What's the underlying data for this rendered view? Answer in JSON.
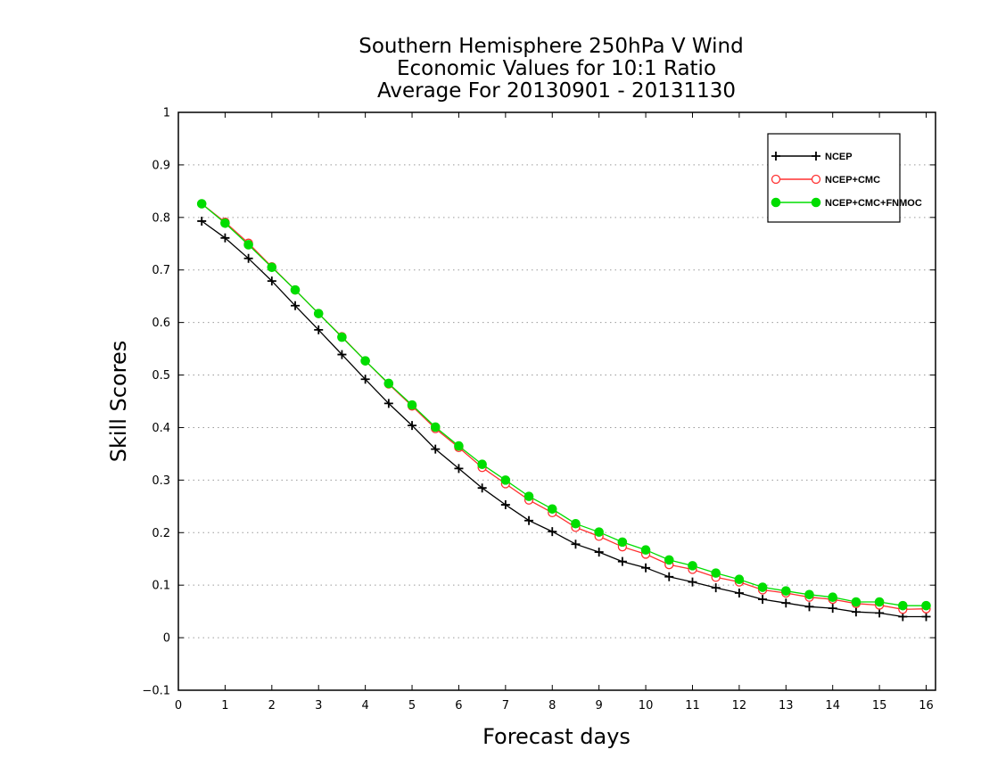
{
  "chart_data": {
    "type": "line",
    "title_lines": [
      "Southern Hemisphere 250hPa V Wind",
      "Economic Values for 10:1 Ratio",
      "Average For 20130901 - 20131130"
    ],
    "xlabel": "Forecast days",
    "ylabel": "Skill Scores",
    "xlim": [
      0,
      16.2
    ],
    "ylim": [
      -0.1,
      1
    ],
    "x_ticks": [
      0,
      1,
      2,
      3,
      4,
      5,
      6,
      7,
      8,
      9,
      10,
      11,
      12,
      13,
      14,
      15,
      16
    ],
    "y_ticks": [
      -0.1,
      0,
      0.1,
      0.2,
      0.3,
      0.4,
      0.5,
      0.6,
      0.7,
      0.8,
      0.9,
      1
    ],
    "y_tick_labels": [
      "−0.1",
      "0",
      "0.1",
      "0.2",
      "0.3",
      "0.4",
      "0.5",
      "0.6",
      "0.7",
      "0.8",
      "0.9",
      "1"
    ],
    "grid": "horizontal-dotted",
    "legend_position": "top-right",
    "x": [
      0.5,
      1,
      1.5,
      2,
      2.5,
      3,
      3.5,
      4,
      4.5,
      5,
      5.5,
      6,
      6.5,
      7,
      7.5,
      8,
      8.5,
      9,
      9.5,
      10,
      10.5,
      11,
      11.5,
      12,
      12.5,
      13,
      13.5,
      14,
      14.5,
      15,
      15.5,
      16
    ],
    "series": [
      {
        "name": "NCEP",
        "color": "#000000",
        "marker": "plus",
        "values": [
          0.793,
          0.761,
          0.722,
          0.679,
          0.632,
          0.586,
          0.539,
          0.492,
          0.446,
          0.404,
          0.359,
          0.322,
          0.285,
          0.253,
          0.223,
          0.202,
          0.178,
          0.163,
          0.145,
          0.133,
          0.116,
          0.106,
          0.095,
          0.085,
          0.073,
          0.066,
          0.059,
          0.056,
          0.049,
          0.047,
          0.04,
          0.04
        ]
      },
      {
        "name": "NCEP+CMC",
        "color": "#ff3030",
        "marker": "open-circle",
        "values": [
          0.826,
          0.791,
          0.751,
          0.706,
          0.662,
          0.617,
          0.573,
          0.527,
          0.483,
          0.441,
          0.398,
          0.362,
          0.324,
          0.293,
          0.262,
          0.238,
          0.21,
          0.193,
          0.173,
          0.159,
          0.139,
          0.13,
          0.115,
          0.106,
          0.091,
          0.085,
          0.077,
          0.073,
          0.065,
          0.062,
          0.054,
          0.055
        ]
      },
      {
        "name": "NCEP+CMC+FNMOC",
        "color": "#00dd00",
        "marker": "filled-circle",
        "values": [
          0.826,
          0.789,
          0.748,
          0.705,
          0.662,
          0.617,
          0.572,
          0.527,
          0.484,
          0.443,
          0.401,
          0.365,
          0.33,
          0.3,
          0.269,
          0.245,
          0.217,
          0.201,
          0.182,
          0.167,
          0.148,
          0.137,
          0.123,
          0.111,
          0.096,
          0.089,
          0.082,
          0.077,
          0.068,
          0.068,
          0.061,
          0.061
        ]
      }
    ]
  }
}
